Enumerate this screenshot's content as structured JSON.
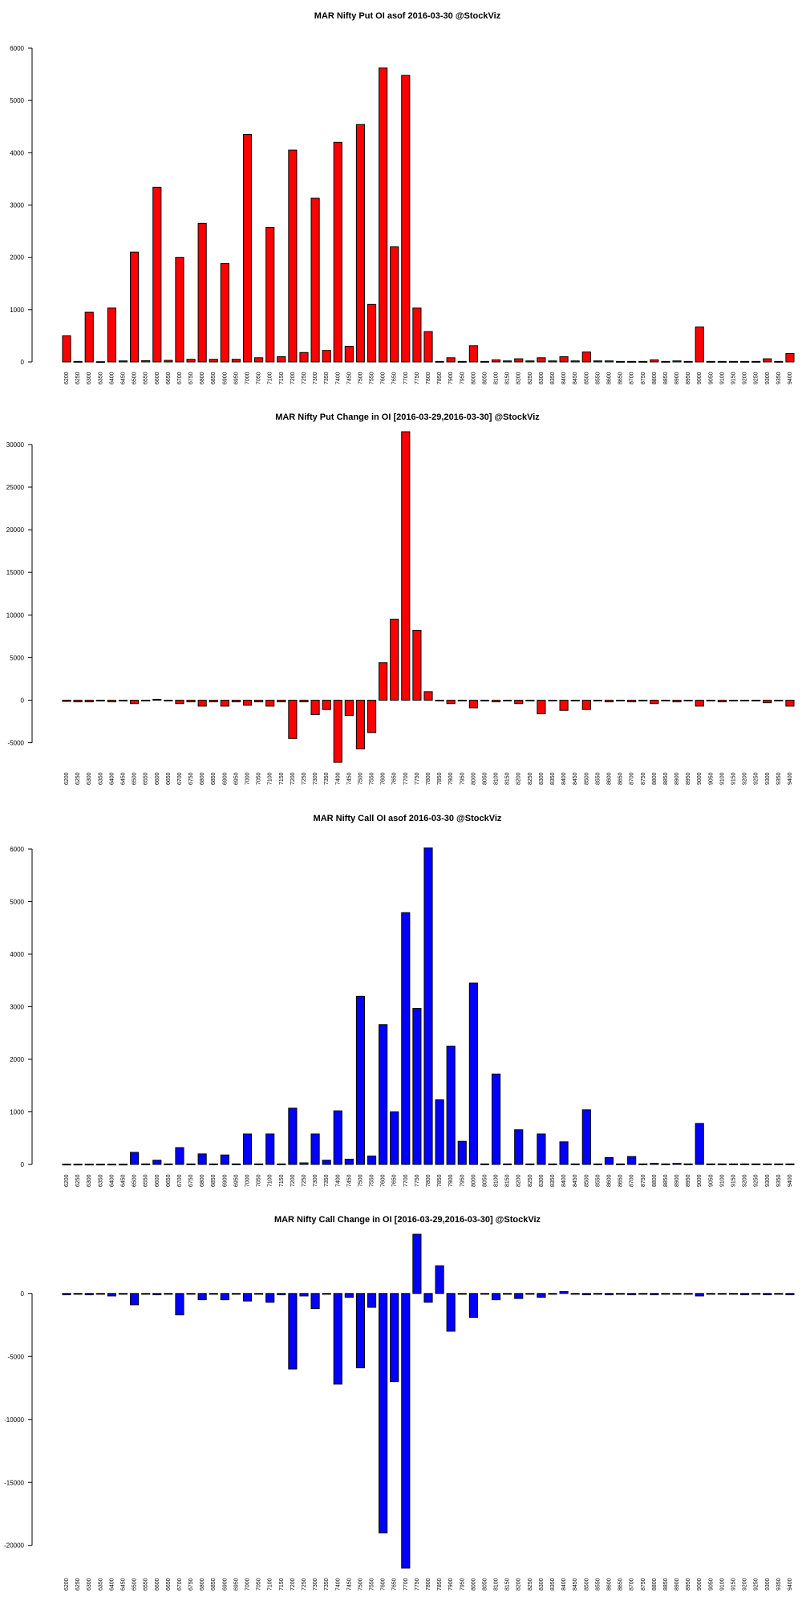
{
  "chart_data": [
    {
      "type": "bar",
      "title": "MAR Nifty Put OI asof 2016-03-30 @StockViz",
      "color": "#ff0000",
      "ylim": [
        0,
        6000
      ],
      "yticks": [
        0,
        1000,
        2000,
        3000,
        4000,
        5000,
        6000
      ],
      "categories": [
        6200,
        6250,
        6300,
        6350,
        6400,
        6450,
        6500,
        6550,
        6600,
        6650,
        6700,
        6750,
        6800,
        6850,
        6900,
        6950,
        7000,
        7050,
        7100,
        7150,
        7200,
        7250,
        7300,
        7350,
        7400,
        7450,
        7500,
        7550,
        7600,
        7650,
        7700,
        7750,
        7800,
        7850,
        7900,
        7950,
        8000,
        8050,
        8100,
        8150,
        8200,
        8250,
        8300,
        8350,
        8400,
        8450,
        8500,
        8550,
        8600,
        8650,
        8700,
        8750,
        8800,
        8850,
        8900,
        8950,
        9000,
        9050,
        9100,
        9150,
        9200,
        9250,
        9300,
        9350,
        9400
      ],
      "values": [
        500,
        10,
        950,
        5,
        1030,
        20,
        2100,
        25,
        3340,
        30,
        2000,
        50,
        2650,
        50,
        1880,
        50,
        4350,
        80,
        2570,
        100,
        4050,
        180,
        3130,
        220,
        4200,
        300,
        4540,
        1100,
        5620,
        2200,
        5480,
        1030,
        580,
        10,
        80,
        10,
        310,
        10,
        40,
        20,
        60,
        20,
        80,
        20,
        100,
        20,
        190,
        20,
        20,
        10,
        10,
        10,
        40,
        10,
        20,
        10,
        670,
        10,
        10,
        10,
        10,
        10,
        60,
        10,
        160
      ]
    },
    {
      "type": "bar",
      "title": "MAR Nifty Put Change in OI [2016-03-29,2016-03-30] @StockViz",
      "color": "#ff0000",
      "ylim": [
        -7300,
        31500
      ],
      "yticks": [
        -5000,
        0,
        5000,
        10000,
        15000,
        20000,
        25000,
        30000
      ],
      "categories": [
        6200,
        6250,
        6300,
        6350,
        6400,
        6450,
        6500,
        6550,
        6600,
        6650,
        6700,
        6750,
        6800,
        6850,
        6900,
        6950,
        7000,
        7050,
        7100,
        7150,
        7200,
        7250,
        7300,
        7350,
        7400,
        7450,
        7500,
        7550,
        7600,
        7650,
        7700,
        7750,
        7800,
        7850,
        7900,
        7950,
        8000,
        8050,
        8100,
        8150,
        8200,
        8250,
        8300,
        8350,
        8400,
        8450,
        8500,
        8550,
        8600,
        8650,
        8700,
        8750,
        8800,
        8850,
        8900,
        8950,
        9000,
        9050,
        9100,
        9150,
        9200,
        9250,
        9300,
        9350,
        9400
      ],
      "values": [
        -150,
        -200,
        -200,
        -100,
        -200,
        -100,
        -400,
        -50,
        100,
        -50,
        -400,
        -200,
        -700,
        -200,
        -700,
        -200,
        -600,
        -200,
        -700,
        -200,
        -4500,
        -200,
        -1700,
        -1100,
        -7300,
        -1800,
        -5700,
        -3800,
        4400,
        9500,
        31500,
        8200,
        1000,
        -50,
        -400,
        -50,
        -900,
        -50,
        -200,
        -50,
        -400,
        -50,
        -1600,
        -50,
        -1200,
        -50,
        -1100,
        -50,
        -200,
        -50,
        -200,
        -50,
        -400,
        -50,
        -200,
        -50,
        -700,
        -50,
        -200,
        -50,
        -50,
        -50,
        -300,
        -50,
        -700
      ]
    },
    {
      "type": "bar",
      "title": "MAR Nifty Call OI asof 2016-03-30 @StockViz",
      "color": "#0000ff",
      "ylim": [
        0,
        6000
      ],
      "yticks": [
        0,
        1000,
        2000,
        3000,
        4000,
        5000,
        6000
      ],
      "categories": [
        6200,
        6250,
        6300,
        6350,
        6400,
        6450,
        6500,
        6550,
        6600,
        6650,
        6700,
        6750,
        6800,
        6850,
        6900,
        6950,
        7000,
        7050,
        7100,
        7150,
        7200,
        7250,
        7300,
        7350,
        7400,
        7450,
        7500,
        7550,
        7600,
        7650,
        7700,
        7750,
        7800,
        7850,
        7900,
        7950,
        8000,
        8050,
        8100,
        8150,
        8200,
        8250,
        8300,
        8350,
        8400,
        8450,
        8500,
        8550,
        8600,
        8650,
        8700,
        8750,
        8800,
        8850,
        8900,
        8950,
        9000,
        9050,
        9100,
        9150,
        9200,
        9250,
        9300,
        9350,
        9400
      ],
      "values": [
        5,
        5,
        5,
        5,
        5,
        5,
        230,
        10,
        80,
        10,
        320,
        10,
        200,
        10,
        180,
        10,
        580,
        10,
        580,
        10,
        1070,
        30,
        580,
        80,
        1020,
        100,
        3200,
        160,
        2660,
        1000,
        4790,
        2970,
        6020,
        1230,
        2250,
        440,
        3450,
        10,
        1720,
        10,
        660,
        10,
        580,
        10,
        430,
        10,
        1040,
        10,
        130,
        10,
        150,
        10,
        20,
        10,
        20,
        10,
        780,
        10,
        10,
        10,
        10,
        10,
        10,
        10,
        10
      ]
    },
    {
      "type": "bar",
      "title": "MAR Nifty Call Change in OI [2016-03-29,2016-03-30] @StockViz",
      "color": "#0000ff",
      "ylim": [
        -21800,
        4700
      ],
      "yticks": [
        -20000,
        -15000,
        -10000,
        -5000,
        0
      ],
      "categories": [
        6200,
        6250,
        6300,
        6350,
        6400,
        6450,
        6500,
        6550,
        6600,
        6650,
        6700,
        6750,
        6800,
        6850,
        6900,
        6950,
        7000,
        7050,
        7100,
        7150,
        7200,
        7250,
        7300,
        7350,
        7400,
        7450,
        7500,
        7550,
        7600,
        7650,
        7700,
        7750,
        7800,
        7850,
        7900,
        7950,
        8000,
        8050,
        8100,
        8150,
        8200,
        8250,
        8300,
        8350,
        8400,
        8450,
        8500,
        8550,
        8600,
        8650,
        8700,
        8750,
        8800,
        8850,
        8900,
        8950,
        9000,
        9050,
        9100,
        9150,
        9200,
        9250,
        9300,
        9350,
        9400
      ],
      "values": [
        -100,
        -50,
        -100,
        -50,
        -200,
        -50,
        -900,
        -50,
        -100,
        -50,
        -1700,
        -50,
        -500,
        -50,
        -500,
        -50,
        -600,
        -50,
        -700,
        -100,
        -6000,
        -200,
        -1200,
        -50,
        -7200,
        -300,
        -5900,
        -1100,
        -19000,
        -7000,
        -21800,
        4700,
        -700,
        2200,
        -3000,
        -50,
        -1900,
        -50,
        -500,
        -50,
        -400,
        -50,
        -300,
        -50,
        150,
        -50,
        -100,
        -50,
        -100,
        -50,
        -100,
        -50,
        -100,
        -50,
        -50,
        -50,
        -200,
        -50,
        -50,
        -50,
        -100,
        -50,
        -100,
        -50,
        -100
      ]
    }
  ]
}
